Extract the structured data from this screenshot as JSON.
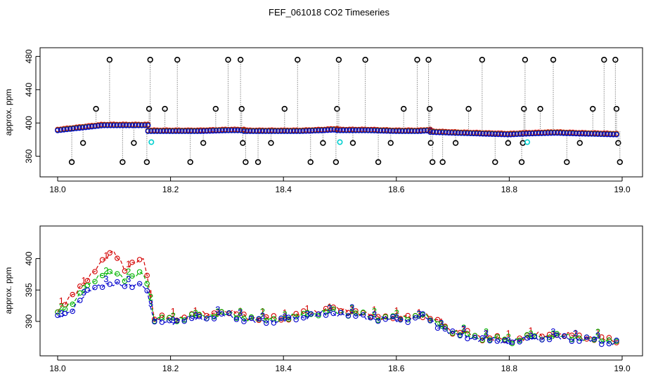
{
  "chart_data": [
    {
      "type": "line",
      "title": "FEF_061018  CO2 Timeseries",
      "ylabel": "approx. ppm",
      "xlabel": "",
      "xlim": [
        18.0,
        19.0
      ],
      "ylim": [
        342,
        482
      ],
      "xticks": [
        18.0,
        18.2,
        18.4,
        18.6,
        18.8,
        19.0
      ],
      "xtick_labels": [
        "18.0",
        "18.2",
        "18.4",
        "18.6",
        "18.8",
        "19.0"
      ],
      "yticks": [
        360,
        400,
        440,
        480
      ],
      "ytick_labels": [
        "360",
        "400",
        "440",
        "480"
      ],
      "baseline_segments": [
        {
          "x": [
            18.0,
            18.04,
            18.08,
            18.12,
            18.16
          ],
          "y": [
            391,
            394,
            397,
            397,
            397
          ]
        },
        {
          "x": [
            18.16,
            18.2,
            18.25,
            18.3,
            18.33
          ],
          "y": [
            390,
            390,
            390,
            391,
            391
          ]
        },
        {
          "x": [
            18.33,
            18.38,
            18.43,
            18.47,
            18.495
          ],
          "y": [
            390,
            390,
            390,
            391,
            392
          ]
        },
        {
          "x": [
            18.495,
            18.55,
            18.6,
            18.64,
            18.66
          ],
          "y": [
            391,
            391,
            390,
            390,
            391
          ]
        },
        {
          "x": [
            18.66,
            18.7,
            18.75,
            18.8,
            18.83
          ],
          "y": [
            389,
            388,
            387,
            386,
            387
          ]
        },
        {
          "x": [
            18.83,
            18.88,
            18.93,
            18.99
          ],
          "y": [
            387,
            388,
            387,
            386
          ]
        }
      ],
      "spikes": [
        {
          "x": 18.025,
          "y": 353
        },
        {
          "x": 18.045,
          "y": 376
        },
        {
          "x": 18.068,
          "y": 417
        },
        {
          "x": 18.092,
          "y": 476
        },
        {
          "x": 18.115,
          "y": 353
        },
        {
          "x": 18.135,
          "y": 376
        },
        {
          "x": 18.158,
          "y": 353
        },
        {
          "x": 18.162,
          "y": 417
        },
        {
          "x": 18.164,
          "y": 476
        },
        {
          "x": 18.19,
          "y": 417
        },
        {
          "x": 18.212,
          "y": 476
        },
        {
          "x": 18.235,
          "y": 353
        },
        {
          "x": 18.258,
          "y": 376
        },
        {
          "x": 18.28,
          "y": 417
        },
        {
          "x": 18.302,
          "y": 476
        },
        {
          "x": 18.324,
          "y": 476
        },
        {
          "x": 18.326,
          "y": 417
        },
        {
          "x": 18.328,
          "y": 376
        },
        {
          "x": 18.333,
          "y": 353
        },
        {
          "x": 18.355,
          "y": 353
        },
        {
          "x": 18.378,
          "y": 376
        },
        {
          "x": 18.402,
          "y": 417
        },
        {
          "x": 18.425,
          "y": 476
        },
        {
          "x": 18.448,
          "y": 353
        },
        {
          "x": 18.47,
          "y": 376
        },
        {
          "x": 18.493,
          "y": 353
        },
        {
          "x": 18.495,
          "y": 417
        },
        {
          "x": 18.498,
          "y": 476
        },
        {
          "x": 18.523,
          "y": 376
        },
        {
          "x": 18.545,
          "y": 476
        },
        {
          "x": 18.568,
          "y": 353
        },
        {
          "x": 18.59,
          "y": 376
        },
        {
          "x": 18.613,
          "y": 417
        },
        {
          "x": 18.637,
          "y": 476
        },
        {
          "x": 18.657,
          "y": 476
        },
        {
          "x": 18.659,
          "y": 417
        },
        {
          "x": 18.661,
          "y": 376
        },
        {
          "x": 18.664,
          "y": 353
        },
        {
          "x": 18.682,
          "y": 353
        },
        {
          "x": 18.705,
          "y": 376
        },
        {
          "x": 18.728,
          "y": 417
        },
        {
          "x": 18.752,
          "y": 476
        },
        {
          "x": 18.775,
          "y": 353
        },
        {
          "x": 18.798,
          "y": 376
        },
        {
          "x": 18.822,
          "y": 353
        },
        {
          "x": 18.824,
          "y": 376
        },
        {
          "x": 18.826,
          "y": 417
        },
        {
          "x": 18.828,
          "y": 476
        },
        {
          "x": 18.855,
          "y": 417
        },
        {
          "x": 18.878,
          "y": 476
        },
        {
          "x": 18.902,
          "y": 353
        },
        {
          "x": 18.925,
          "y": 376
        },
        {
          "x": 18.948,
          "y": 417
        },
        {
          "x": 18.968,
          "y": 476
        },
        {
          "x": 18.988,
          "y": 476
        },
        {
          "x": 18.99,
          "y": 417
        },
        {
          "x": 18.993,
          "y": 376
        },
        {
          "x": 18.996,
          "y": 353
        }
      ],
      "cyan_points": [
        {
          "x": 18.166,
          "y": 377
        },
        {
          "x": 18.5,
          "y": 377
        },
        {
          "x": 18.832,
          "y": 377
        }
      ]
    },
    {
      "type": "line",
      "title": "",
      "ylabel": "approx. ppm",
      "xlabel": "",
      "xlim": [
        18.0,
        19.0
      ],
      "ylim": [
        385.3,
        404.3
      ],
      "xticks": [
        18.0,
        18.2,
        18.4,
        18.6,
        18.8,
        19.0
      ],
      "xtick_labels": [
        "18.0",
        "18.2",
        "18.4",
        "18.6",
        "18.8",
        "19.0"
      ],
      "yticks": [
        390,
        395,
        400
      ],
      "ytick_labels": [
        "390",
        "395",
        "400"
      ],
      "series": [
        {
          "name": "1",
          "color": "#d40000",
          "x": [
            18.0,
            18.02,
            18.04,
            18.06,
            18.08,
            18.1,
            18.12,
            18.14,
            18.155,
            18.17,
            18.2,
            18.25,
            18.3,
            18.35,
            18.4,
            18.45,
            18.5,
            18.55,
            18.6,
            18.65,
            18.7,
            18.75,
            18.8,
            18.85,
            18.9,
            18.95,
            18.99
          ],
          "values": [
            391.5,
            393.5,
            395.5,
            397.5,
            399.5,
            401.5,
            398.0,
            399.5,
            400.0,
            390.5,
            390.5,
            391.0,
            391.5,
            390.5,
            390.5,
            391.5,
            392.0,
            391.0,
            390.5,
            391.0,
            388.5,
            387.5,
            387.0,
            387.8,
            387.8,
            387.3,
            387.0
          ]
        },
        {
          "name": "2",
          "color": "#00b400",
          "x": [
            18.0,
            18.02,
            18.04,
            18.06,
            18.08,
            18.1,
            18.12,
            18.14,
            18.155,
            18.17,
            18.2,
            18.25,
            18.3,
            18.35,
            18.4,
            18.45,
            18.5,
            18.55,
            18.6,
            18.65,
            18.7,
            18.75,
            18.8,
            18.85,
            18.9,
            18.95,
            18.99
          ],
          "values": [
            391.0,
            392.5,
            394.5,
            396.0,
            397.5,
            398.0,
            396.5,
            397.5,
            398.0,
            390.3,
            390.3,
            390.8,
            391.2,
            390.3,
            390.4,
            391.2,
            391.6,
            390.8,
            390.4,
            390.9,
            388.2,
            387.4,
            386.9,
            387.6,
            387.6,
            387.1,
            386.8
          ]
        },
        {
          "name": "3",
          "color": "#0000cc",
          "x": [
            18.0,
            18.02,
            18.04,
            18.06,
            18.08,
            18.1,
            18.12,
            18.14,
            18.155,
            18.17,
            18.2,
            18.25,
            18.3,
            18.35,
            18.4,
            18.45,
            18.5,
            18.55,
            18.6,
            18.65,
            18.7,
            18.75,
            18.8,
            18.85,
            18.9,
            18.95,
            18.99
          ],
          "values": [
            390.5,
            391.5,
            393.5,
            395.0,
            396.0,
            396.0,
            395.5,
            396.0,
            396.0,
            390.0,
            390.0,
            390.5,
            391.0,
            390.0,
            390.2,
            391.0,
            391.3,
            390.6,
            390.2,
            390.7,
            388.0,
            387.2,
            386.7,
            387.4,
            387.4,
            386.9,
            386.6
          ]
        }
      ]
    }
  ]
}
